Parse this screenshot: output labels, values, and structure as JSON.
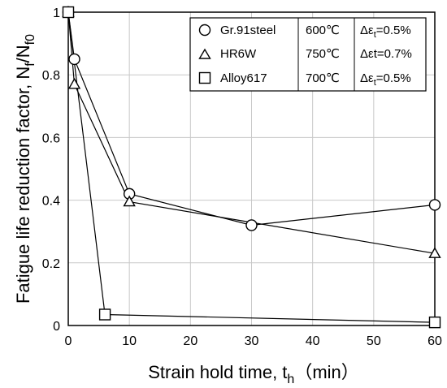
{
  "chart_data": {
    "type": "line",
    "title": "",
    "xlabel": {
      "main": "Strain hold time, t",
      "sub": "h",
      "suffix": "（min）"
    },
    "ylabel": {
      "main": "Fatigue life reduction factor, N",
      "sub1": "f",
      "mid": "/N",
      "sub2": "f0"
    },
    "xlim": [
      0,
      60
    ],
    "ylim": [
      0,
      1
    ],
    "xticks": [
      0,
      10,
      20,
      30,
      40,
      50,
      60
    ],
    "yticks": [
      0,
      0.2,
      0.4,
      0.6,
      0.8,
      1
    ],
    "xtick_labels": [
      "0",
      "10",
      "20",
      "30",
      "40",
      "50",
      "60"
    ],
    "ytick_labels": [
      "0",
      "0.2",
      "0.4",
      "0.6",
      "0.8",
      "1"
    ],
    "grid": true,
    "legend_position": "top-right",
    "series": [
      {
        "name": "Gr.91steel",
        "temperature": "600℃",
        "strain": {
          "pre": "Δε",
          "sub": "t",
          "post": "=0.5%"
        },
        "marker": "circle",
        "x": [
          0,
          1,
          10,
          30,
          60
        ],
        "y": [
          1.0,
          0.85,
          0.42,
          0.32,
          0.385
        ]
      },
      {
        "name": "HR6W",
        "temperature": "750℃",
        "strain": {
          "pre": "Δεt",
          "sub": "",
          "post": "=0.7%"
        },
        "marker": "triangle",
        "x": [
          0,
          1,
          10,
          60
        ],
        "y": [
          1.0,
          0.77,
          0.395,
          0.23
        ]
      },
      {
        "name": "Alloy617",
        "temperature": "700℃",
        "strain": {
          "pre": "Δε",
          "sub": "t",
          "post": "=0.5%"
        },
        "marker": "square",
        "x": [
          0,
          6,
          60
        ],
        "y": [
          1.0,
          0.035,
          0.01
        ]
      }
    ]
  }
}
